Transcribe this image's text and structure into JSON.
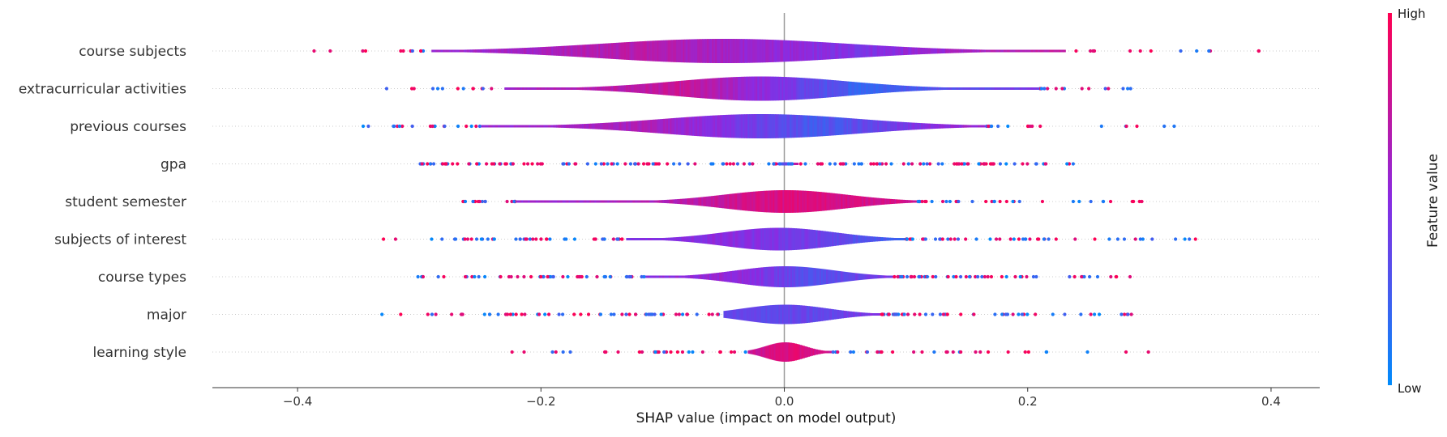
{
  "chart_data": {
    "type": "violin",
    "title": "",
    "xlabel": "SHAP value (impact on model output)",
    "ylabel": "",
    "xlim": [
      -0.47,
      0.44
    ],
    "x_ticks": [
      -0.4,
      -0.2,
      0.0,
      0.2,
      0.4
    ],
    "x_tick_labels": [
      "−0.4",
      "−0.2",
      "0.0",
      "0.2",
      "0.4"
    ],
    "features": [
      {
        "name": "course subjects",
        "range": [
          -0.43,
          0.4
        ],
        "core": [
          -0.29,
          0.23
        ],
        "peak": -0.05,
        "bw": 0.1,
        "max_half_height": 15,
        "dots": 24,
        "palette": [
          0.55,
          0.7,
          0.45,
          0.75
        ]
      },
      {
        "name": "extracurricular activities",
        "range": [
          -0.345,
          0.29
        ],
        "core": [
          -0.23,
          0.21
        ],
        "peak": -0.02,
        "bw": 0.07,
        "max_half_height": 15,
        "dots": 28,
        "palette": [
          0.6,
          0.75,
          0.2,
          0.45
        ]
      },
      {
        "name": "previous courses",
        "range": [
          -0.355,
          0.35
        ],
        "core": [
          -0.25,
          0.165
        ],
        "peak": -0.02,
        "bw": 0.08,
        "max_half_height": 15,
        "dots": 36,
        "palette": [
          0.55,
          0.65,
          0.25,
          0.6
        ]
      },
      {
        "name": "gpa",
        "range": [
          -0.3,
          0.24
        ],
        "core": [
          -0.01,
          0.01
        ],
        "peak": 0.0,
        "bw": 0.01,
        "max_half_height": 2,
        "dots": 160,
        "palette": [
          0.8,
          0.2,
          0.5,
          0.75
        ]
      },
      {
        "name": "student semester",
        "range": [
          -0.28,
          0.295
        ],
        "core": [
          -0.22,
          0.11
        ],
        "peak": 0.0,
        "bw": 0.05,
        "max_half_height": 14,
        "dots": 52,
        "palette": [
          0.55,
          0.65,
          0.85,
          0.8
        ]
      },
      {
        "name": "subjects of interest",
        "range": [
          -0.34,
          0.35
        ],
        "core": [
          -0.13,
          0.1
        ],
        "peak": -0.005,
        "bw": 0.045,
        "max_half_height": 14,
        "dots": 96,
        "palette": [
          0.45,
          0.5,
          0.4,
          0.2
        ]
      },
      {
        "name": "course types",
        "range": [
          -0.375,
          0.285
        ],
        "core": [
          -0.115,
          0.09
        ],
        "peak": 0.0,
        "bw": 0.04,
        "max_half_height": 13,
        "dots": 100,
        "palette": [
          0.5,
          0.55,
          0.3,
          0.45
        ]
      },
      {
        "name": "major",
        "range": [
          -0.35,
          0.31
        ],
        "core": [
          -0.05,
          0.08
        ],
        "peak": 0.0,
        "bw": 0.035,
        "max_half_height": 12,
        "dots": 110,
        "palette": [
          0.35,
          0.35,
          0.35,
          0.5
        ]
      },
      {
        "name": "learning style",
        "range": [
          -0.23,
          0.305
        ],
        "core": [
          -0.03,
          0.04
        ],
        "peak": 0.0,
        "bw": 0.016,
        "max_half_height": 12,
        "dots": 60,
        "palette": [
          0.75,
          0.85,
          0.85,
          0.75
        ]
      }
    ],
    "colorbar": {
      "label": "Feature value",
      "high_label": "High",
      "low_label": "Low",
      "high_color": "#ff0052",
      "mid_color": "#8a2be2",
      "low_color": "#008bfb"
    },
    "zero_line": true,
    "grid": false
  }
}
